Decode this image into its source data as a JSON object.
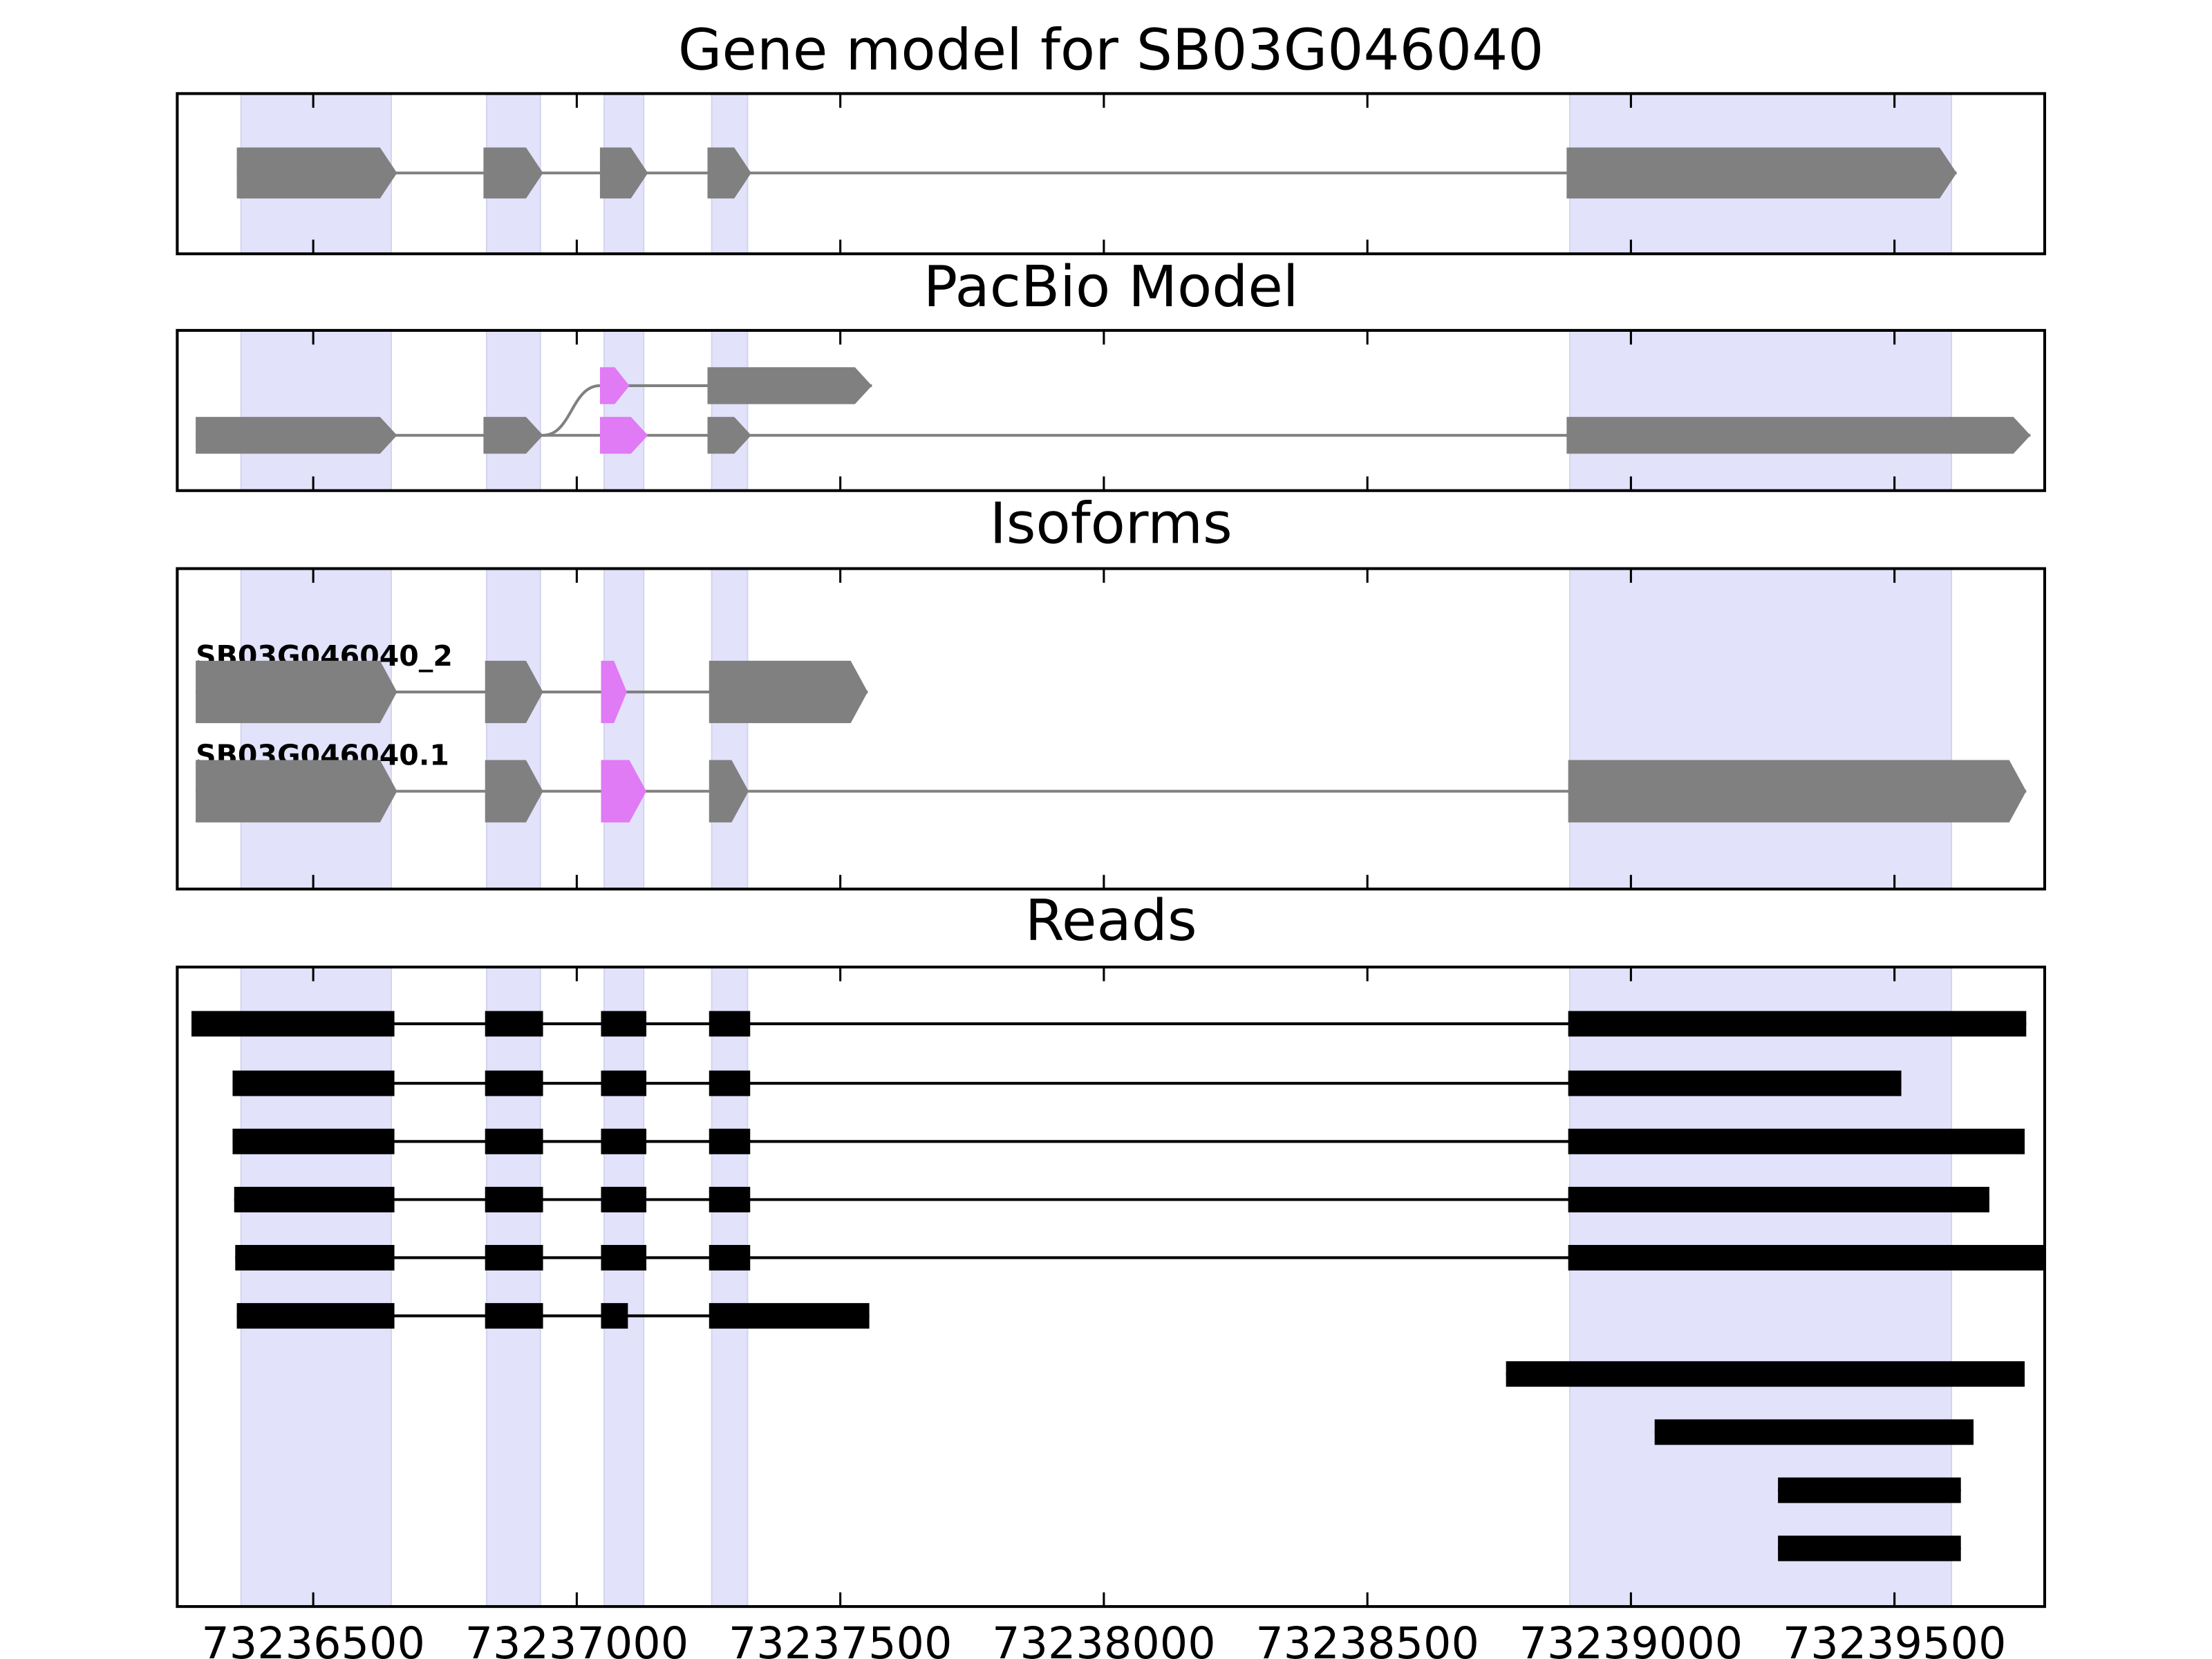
{
  "chart_data": [
    {
      "type": "gene-model",
      "title": "Gene model for SB03G046040",
      "highlight_color": "#e2e2fb",
      "highlights": [
        [
          73236363,
          73236648
        ],
        [
          73236829,
          73236931
        ],
        [
          73237052,
          73237127
        ],
        [
          73237256,
          73237324
        ],
        [
          73238884,
          73239608
        ]
      ],
      "tracks": [
        {
          "exons": [
            {
              "start": 73236355,
              "end": 73236659,
              "color": "#808080"
            },
            {
              "start": 73236823,
              "end": 73236936,
              "color": "#808080"
            },
            {
              "start": 73237044,
              "end": 73237135,
              "color": "#808080"
            },
            {
              "start": 73237248,
              "end": 73237331,
              "color": "#808080"
            },
            {
              "start": 73238878,
              "end": 73239618,
              "color": "#808080"
            }
          ]
        }
      ]
    },
    {
      "type": "splice-graph",
      "title": "PacBio Model",
      "highlight_color": "#e2e2fb",
      "highlights": [
        [
          73236363,
          73236648
        ],
        [
          73236829,
          73236931
        ],
        [
          73237052,
          73237127
        ],
        [
          73237256,
          73237324
        ],
        [
          73238884,
          73239608
        ]
      ],
      "tracks": [
        {
          "exons": [
            {
              "start": 73237044,
              "end": 73237100,
              "color": "#e07af5"
            },
            {
              "start": 73237248,
              "end": 73237560,
              "color": "#808080"
            }
          ]
        },
        {
          "exons": [
            {
              "start": 73236277,
              "end": 73236659,
              "color": "#808080"
            },
            {
              "start": 73236823,
              "end": 73236936,
              "color": "#808080"
            },
            {
              "start": 73237044,
              "end": 73237135,
              "color": "#e07af5"
            },
            {
              "start": 73237248,
              "end": 73237331,
              "color": "#808080"
            },
            {
              "start": 73238878,
              "end": 73239758,
              "color": "#808080"
            }
          ]
        }
      ]
    },
    {
      "type": "isoforms",
      "title": "Isoforms",
      "highlight_color": "#e2e2fb",
      "highlights": [
        [
          73236363,
          73236648
        ],
        [
          73236829,
          73236931
        ],
        [
          73237052,
          73237127
        ],
        [
          73237256,
          73237324
        ],
        [
          73238884,
          73239608
        ]
      ],
      "tracks": [
        {
          "label": "SB03G046040_2",
          "exons": [
            {
              "start": 73236277,
              "end": 73236659,
              "color": "#808080"
            },
            {
              "start": 73236826,
              "end": 73236936,
              "color": "#808080"
            },
            {
              "start": 73237046,
              "end": 73237095,
              "color": "#e07af5"
            },
            {
              "start": 73237251,
              "end": 73237552,
              "color": "#808080"
            }
          ]
        },
        {
          "label": "SB03G046040.1",
          "exons": [
            {
              "start": 73236277,
              "end": 73236659,
              "color": "#808080"
            },
            {
              "start": 73236826,
              "end": 73236936,
              "color": "#808080"
            },
            {
              "start": 73237046,
              "end": 73237132,
              "color": "#e07af5"
            },
            {
              "start": 73237251,
              "end": 73237326,
              "color": "#808080"
            },
            {
              "start": 73238881,
              "end": 73239750,
              "color": "#808080"
            }
          ]
        }
      ]
    },
    {
      "type": "reads",
      "title": "Reads",
      "highlight_color": "#e2e2fb",
      "color": "#000000",
      "highlights": [
        [
          73236363,
          73236648
        ],
        [
          73236829,
          73236931
        ],
        [
          73237052,
          73237127
        ],
        [
          73237256,
          73237324
        ],
        [
          73238884,
          73239608
        ]
      ],
      "xlim": [
        73236242,
        73239785
      ],
      "xticks": [
        73236500,
        73237000,
        73237500,
        73238000,
        73238500,
        73239000,
        73239500
      ],
      "reads": [
        [
          [
            73236269,
            73236654
          ],
          [
            73236826,
            73236936
          ],
          [
            73237046,
            73237132
          ],
          [
            73237251,
            73237329
          ],
          [
            73238881,
            73239750
          ]
        ],
        [
          [
            73236347,
            73236654
          ],
          [
            73236826,
            73236936
          ],
          [
            73237046,
            73237132
          ],
          [
            73237251,
            73237329
          ],
          [
            73238881,
            73239513
          ]
        ],
        [
          [
            73236347,
            73236654
          ],
          [
            73236826,
            73236936
          ],
          [
            73237046,
            73237132
          ],
          [
            73237251,
            73237329
          ],
          [
            73238881,
            73239747
          ]
        ],
        [
          [
            73236350,
            73236654
          ],
          [
            73236826,
            73236936
          ],
          [
            73237046,
            73237132
          ],
          [
            73237251,
            73237329
          ],
          [
            73238881,
            73239680
          ]
        ],
        [
          [
            73236352,
            73236654
          ],
          [
            73236826,
            73236936
          ],
          [
            73237046,
            73237132
          ],
          [
            73237251,
            73237329
          ],
          [
            73238881,
            73239785
          ]
        ],
        [
          [
            73236355,
            73236654
          ],
          [
            73236826,
            73236936
          ],
          [
            73237046,
            73237097
          ],
          [
            73237251,
            73237555
          ]
        ],
        [
          [
            73238763,
            73239747
          ]
        ],
        [
          [
            73239045,
            73239650
          ]
        ],
        [
          [
            73239279,
            73239626
          ]
        ],
        [
          [
            73239279,
            73239626
          ]
        ]
      ]
    }
  ]
}
